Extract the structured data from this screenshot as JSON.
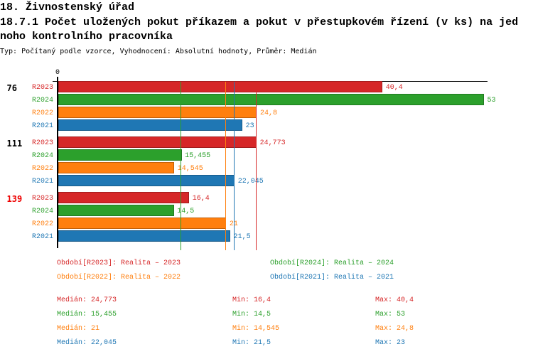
{
  "header": {
    "title": "18. Živnostenský úřad",
    "subtitle_line1": "18.7.1 Počet uložených pokut příkazem a pokut v přestupkovém řízení (v ks) na jed",
    "subtitle_line2": "noho kontrolního pracovníka",
    "subtitle_full": "18.7.1 Počet uložených pokut příkazem a pokut v přestupkovém řízení (v ks) na jednoho kontrolního pracovníka",
    "meta": "Typ: Počítaný podle vzorce, Vyhodnocení: Absolutní hodnoty, Průměr: Medián"
  },
  "colors": {
    "R2023": "#d62728",
    "R2024": "#2ca02c",
    "R2022": "#ff7f0e",
    "R2021": "#1f77b4",
    "R2023_border": "#a31d1e",
    "R2024_border": "#217a21",
    "R2022_border": "#c2600a",
    "R2021_border": "#175a89",
    "highlight_group_label": "#ee0000",
    "group_label": "#000000",
    "axis": "#000000"
  },
  "chart_data": {
    "type": "bar",
    "orientation": "horizontal",
    "title": "18.7.1 Počet uložených pokut příkazem a pokut v přestupkovém řízení (v ks) na jednoho kontrolního pracovníka",
    "xlabel": "",
    "ylabel": "",
    "xlim": [
      0,
      53.5
    ],
    "grid": false,
    "legend_position": "bottom",
    "axis_zero_label": "0",
    "series_order": [
      "R2023",
      "R2024",
      "R2022",
      "R2021"
    ],
    "categories": [
      "76",
      "111",
      "139"
    ],
    "highlighted_category": "139",
    "groups": [
      {
        "label": "76",
        "highlighted": false,
        "bars": [
          {
            "series": "R2023",
            "value": 40.4,
            "value_label": "40,4"
          },
          {
            "series": "R2024",
            "value": 53,
            "value_label": "53"
          },
          {
            "series": "R2022",
            "value": 24.8,
            "value_label": "24,8"
          },
          {
            "series": "R2021",
            "value": 23,
            "value_label": "23"
          }
        ]
      },
      {
        "label": "111",
        "highlighted": false,
        "bars": [
          {
            "series": "R2023",
            "value": 24.773,
            "value_label": "24,773"
          },
          {
            "series": "R2024",
            "value": 15.455,
            "value_label": "15,455"
          },
          {
            "series": "R2022",
            "value": 14.545,
            "value_label": "14,545"
          },
          {
            "series": "R2021",
            "value": 22.045,
            "value_label": "22,045"
          }
        ]
      },
      {
        "label": "139",
        "highlighted": true,
        "bars": [
          {
            "series": "R2023",
            "value": 16.4,
            "value_label": "16,4"
          },
          {
            "series": "R2024",
            "value": 14.5,
            "value_label": "14,5"
          },
          {
            "series": "R2022",
            "value": 21,
            "value_label": "21"
          },
          {
            "series": "R2021",
            "value": 21.5,
            "value_label": "21,5"
          }
        ]
      }
    ],
    "median_lines": [
      {
        "series": "R2023",
        "value": 24.773
      },
      {
        "series": "R2024",
        "value": 15.455
      },
      {
        "series": "R2022",
        "value": 21
      },
      {
        "series": "R2021",
        "value": 22.045
      }
    ]
  },
  "legend": [
    {
      "series": "R2023",
      "label": "Období[R2023]: Realita – 2023",
      "col": 0,
      "row": 0
    },
    {
      "series": "R2024",
      "label": "Období[R2024]: Realita – 2024",
      "col": 1,
      "row": 0
    },
    {
      "series": "R2022",
      "label": "Období[R2022]: Realita – 2022",
      "col": 0,
      "row": 1
    },
    {
      "series": "R2021",
      "label": "Období[R2021]: Realita – 2021",
      "col": 1,
      "row": 1
    }
  ],
  "stats": [
    {
      "series": "R2023",
      "median": "Medián: 24,773",
      "min": "Min: 16,4",
      "max": "Max: 40,4"
    },
    {
      "series": "R2024",
      "median": "Medián: 15,455",
      "min": "Min: 14,5",
      "max": "Max: 53"
    },
    {
      "series": "R2022",
      "median": "Medián: 21",
      "min": "Min: 14,545",
      "max": "Max: 24,8"
    },
    {
      "series": "R2021",
      "median": "Medián: 22,045",
      "min": "Min: 21,5",
      "max": "Max: 23"
    }
  ]
}
